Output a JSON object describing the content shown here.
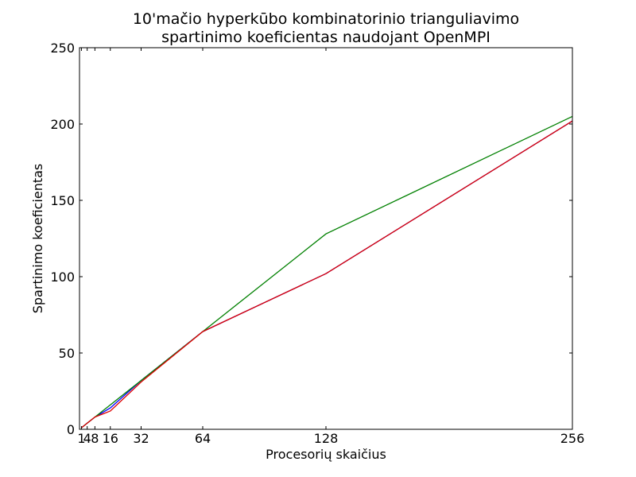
{
  "chart_data": {
    "type": "line",
    "title_lines": [
      "10'mačio hyperkūbo kombinatorinio trianguliavimo",
      "spartinimo koeficientas naudojant OpenMPI"
    ],
    "xlabel": "Procesorių skaičius",
    "ylabel": "Spartinimo koeficientas",
    "x_ticks": [
      1,
      4,
      8,
      16,
      32,
      64,
      128,
      256
    ],
    "x_tick_labels": [
      "1",
      "4",
      "8",
      "16",
      "32",
      "64",
      "128",
      "256"
    ],
    "y_ticks": [
      0,
      50,
      100,
      150,
      200,
      250
    ],
    "y_tick_labels": [
      "0",
      "50",
      "100",
      "150",
      "200",
      "250"
    ],
    "xlim": [
      0,
      256
    ],
    "ylim": [
      0,
      250
    ],
    "grid": false,
    "series": [
      {
        "color": "#0000ff",
        "x": [
          1,
          4,
          8,
          16,
          32,
          64,
          128,
          256
        ],
        "y": [
          1,
          4,
          8,
          14,
          32,
          64,
          102,
          202
        ]
      },
      {
        "color": "#008000",
        "x": [
          1,
          4,
          8,
          16,
          32,
          64,
          128,
          256
        ],
        "y": [
          1,
          4,
          8,
          16,
          32,
          64,
          128,
          205
        ]
      },
      {
        "color": "#dd0000",
        "x": [
          1,
          4,
          8,
          16,
          32,
          64,
          128,
          256
        ],
        "y": [
          1,
          4,
          8,
          12,
          31,
          64,
          102,
          202
        ]
      }
    ]
  }
}
